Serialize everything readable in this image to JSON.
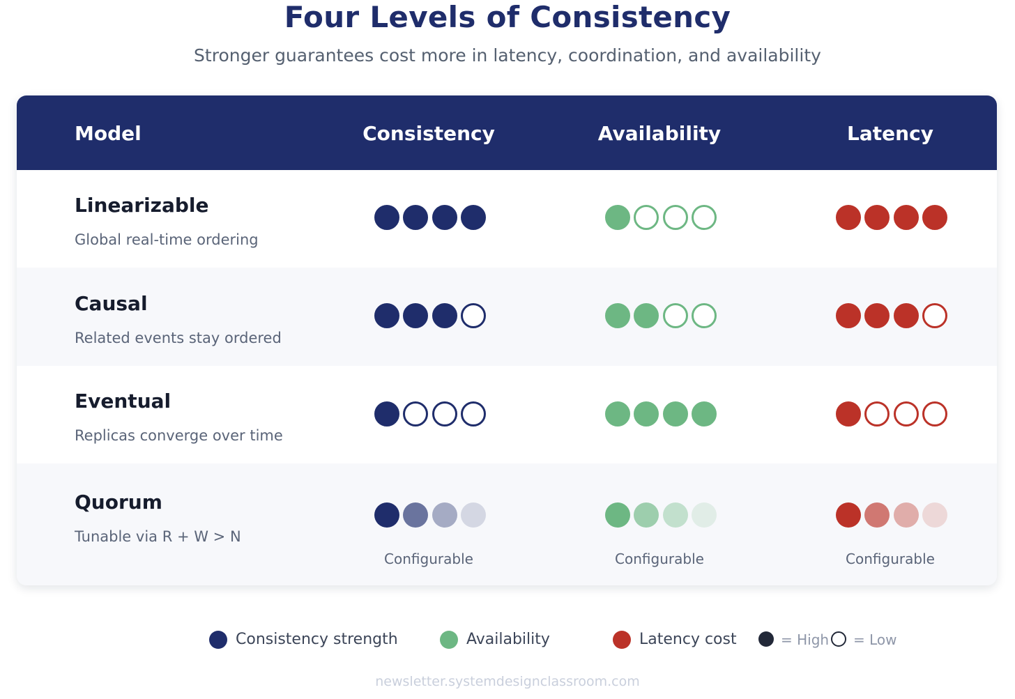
{
  "header": {
    "title": "Four Levels of Consistency",
    "subtitle": "Stronger guarantees cost more in latency, coordination, and availability"
  },
  "table": {
    "columns": [
      "Model",
      "Consistency",
      "Availability",
      "Latency"
    ],
    "rows": [
      {
        "name": "Linearizable",
        "description": "Global real-time ordering",
        "consistency": 4,
        "availability": 1,
        "latency": 4,
        "configurable": false
      },
      {
        "name": "Causal",
        "description": "Related events stay ordered",
        "consistency": 3,
        "availability": 2,
        "latency": 3,
        "configurable": false
      },
      {
        "name": "Eventual",
        "description": "Replicas converge over time",
        "consistency": 1,
        "availability": 4,
        "latency": 1,
        "configurable": false
      },
      {
        "name": "Quorum",
        "description": "Tunable via R + W > N",
        "consistency": "gradient",
        "availability": "gradient",
        "latency": "gradient",
        "configurable": true,
        "configurable_label": "Configurable"
      }
    ]
  },
  "colors": {
    "header_bg": "#1f2d6b",
    "consistency": "#1f2d6b",
    "availability": "#6db783",
    "latency": "#bb3228",
    "gradient_opacity": [
      1.0,
      0.65,
      0.38,
      0.16
    ]
  },
  "legend": {
    "items": [
      {
        "label": "Consistency strength",
        "color": "#1f2d6b"
      },
      {
        "label": "Availability",
        "color": "#6db783"
      },
      {
        "label": "Latency cost",
        "color": "#bb3228"
      }
    ],
    "high_label": "= High",
    "low_label": "= Low"
  },
  "footer": {
    "text": "newsletter.systemdesignclassroom.com"
  }
}
